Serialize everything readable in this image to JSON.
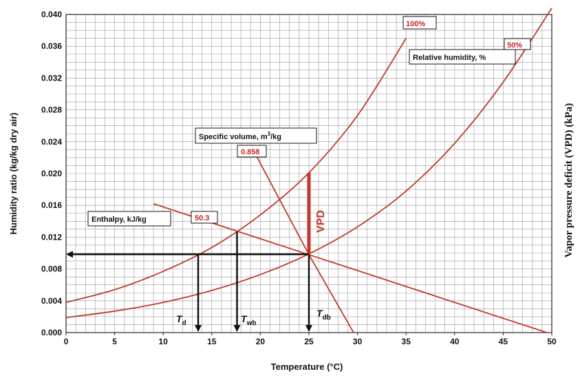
{
  "colors": {
    "curve": "#c0392b",
    "label_value": "#d02020",
    "arrow": "#111111",
    "grid": "#9a9a9a"
  },
  "chart_data": {
    "type": "line",
    "title": "",
    "xlabel": "Temperature (°C)",
    "ylabel": "Humidity  ratio (kg/kg dry air)",
    "ylabel_right": "Vapor pressure deficit (VPD) (kPa)",
    "xlim": [
      0,
      50
    ],
    "ylim": [
      0,
      0.04
    ],
    "grid": true,
    "x_ticks": [
      "0",
      "5",
      "10",
      "15",
      "20",
      "25",
      "30",
      "35",
      "40",
      "45",
      "50"
    ],
    "y_ticks": [
      "0.000",
      "0.004",
      "0.008",
      "0.012",
      "0.016",
      "0.020",
      "0.024",
      "0.028",
      "0.032",
      "0.036",
      "0.040"
    ],
    "series": [
      {
        "name": "100%",
        "x": [
          0,
          5,
          10,
          15,
          20,
          25,
          30,
          35
        ],
        "y": [
          0.0038,
          0.0054,
          0.0077,
          0.0107,
          0.0148,
          0.0201,
          0.0273,
          0.037
        ]
      },
      {
        "name": "50%",
        "x": [
          0,
          5,
          10,
          15,
          20,
          25,
          30,
          35,
          40,
          45,
          50
        ],
        "y": [
          0.0019,
          0.0027,
          0.0038,
          0.0053,
          0.0073,
          0.0099,
          0.0133,
          0.0178,
          0.0238,
          0.0315,
          0.0408
        ]
      },
      {
        "name": "Enthalpy 50.3",
        "x": [
          9,
          25,
          49.5
        ],
        "y": [
          0.0162,
          0.0098,
          0.0
        ]
      },
      {
        "name": "Specific volume 0.858",
        "x": [
          19.6,
          25,
          29.6
        ],
        "y": [
          0.0222,
          0.0098,
          0.0
        ]
      }
    ],
    "state_point": {
      "x": 25,
      "y": 0.0098
    },
    "vpd_segment": {
      "x": 25,
      "y_from": 0.0099,
      "y_to": 0.0201
    },
    "dew_point_x": 13.6,
    "wet_bulb_x": 17.6,
    "wet_bulb_y": 0.0127,
    "annotations": {
      "relative_humidity": "Relative humidity, %",
      "rh_100": "100%",
      "rh_50": "50%",
      "specific_volume_prefix": "Specific volume, m",
      "specific_volume_sup": "3",
      "specific_volume_suffix": "/kg",
      "specific_volume_value": "0.858",
      "enthalpy": "Enthalpy, kJ/kg",
      "enthalpy_value": "50.3",
      "vpd": "VPD",
      "t_d": "T",
      "t_d_sub": "d",
      "t_wb": "T",
      "t_wb_sub": "wb",
      "t_db": "T",
      "t_db_sub": "db"
    }
  }
}
